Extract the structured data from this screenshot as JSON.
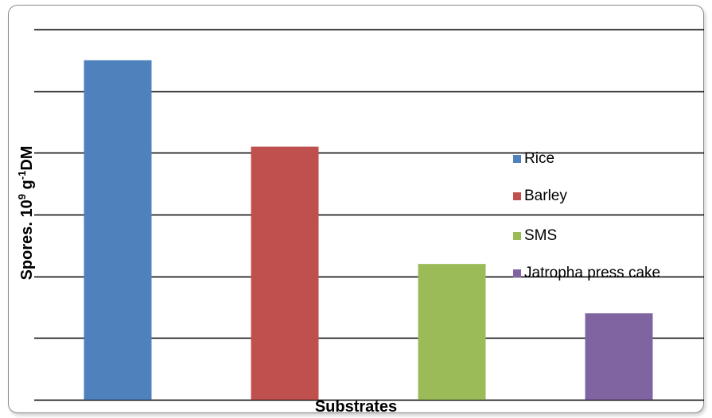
{
  "chart_data": {
    "type": "bar",
    "categories": [
      "Rice",
      "Barley",
      "SMS",
      "Jatropha press cake"
    ],
    "values": [
      5.5,
      4.1,
      2.2,
      1.4
    ],
    "colors": [
      "#4f81bd",
      "#c0504d",
      "#9bbb59",
      "#8064a2"
    ],
    "ylim": [
      0,
      6
    ],
    "ytick_step": 1,
    "show_tick_labels": false,
    "grid": true,
    "legend_position": "right",
    "xlabel": "Substrates",
    "ylabel_text": "Spores. 10",
    "ylabel_sup1": "9",
    "ylabel_mid": " g",
    "ylabel_sup2": "-1",
    "ylabel_end": "DM"
  }
}
